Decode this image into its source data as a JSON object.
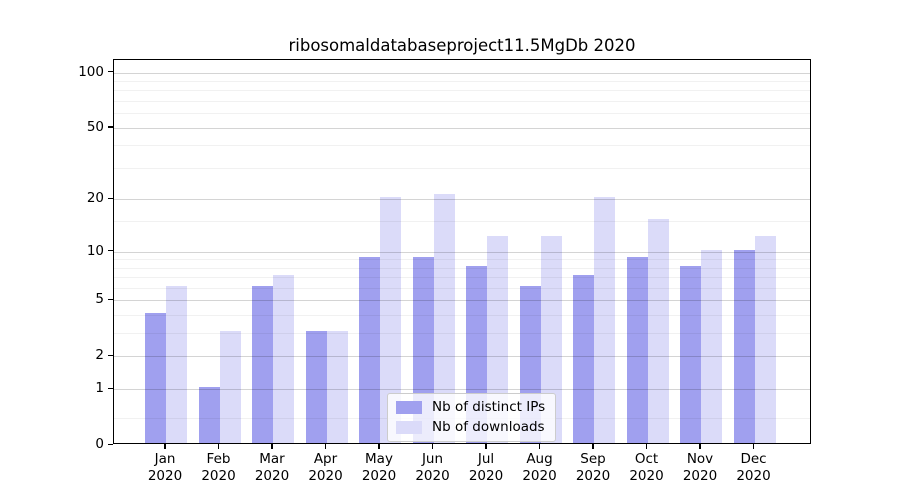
{
  "title": "ribosomaldatabaseproject11.5MgDb 2020",
  "chart_data": {
    "type": "bar",
    "title": "ribosomaldatabaseproject11.5MgDb 2020",
    "categories": [
      "Jan",
      "Feb",
      "Mar",
      "Apr",
      "May",
      "Jun",
      "Jul",
      "Aug",
      "Sep",
      "Oct",
      "Nov",
      "Dec"
    ],
    "year": "2020",
    "series": [
      {
        "name": "Nb of distinct IPs",
        "color": "#a0a0ef",
        "values": [
          4,
          1,
          6,
          3,
          9,
          9,
          8,
          6,
          7,
          9,
          8,
          10
        ]
      },
      {
        "name": "Nb of downloads",
        "color": "#dbdbf9",
        "values": [
          6,
          3,
          7,
          3,
          20,
          21,
          12,
          12,
          20,
          15,
          10,
          12
        ]
      }
    ],
    "xlabel": "",
    "ylabel": "",
    "y_scale": "log1p",
    "y_ticks": [
      0,
      1,
      2,
      5,
      10,
      20,
      50,
      100
    ],
    "y_minor_gridlines": [
      0.4,
      3,
      4,
      6,
      7,
      8,
      9,
      15,
      30,
      40,
      60,
      70,
      80,
      90
    ],
    "ylim": [
      0,
      117
    ],
    "grid": "on",
    "legend_position": "lower center"
  }
}
